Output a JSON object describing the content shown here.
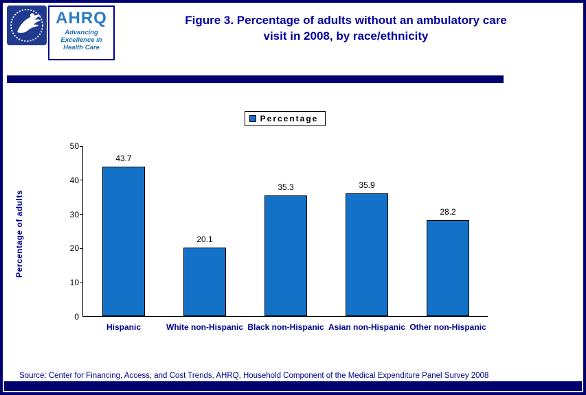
{
  "header": {
    "title": "Figure 3. Percentage of adults without an ambulatory care visit in 2008, by race/ethnicity",
    "ahrq_acronym": "AHRQ",
    "ahrq_tagline_lines": [
      "Advancing",
      "Excellence in",
      "Health Care"
    ]
  },
  "legend": {
    "label": "Percentage"
  },
  "chart_data": {
    "type": "bar",
    "categories": [
      "Hispanic",
      "White non-Hispanic",
      "Black non-Hispanic",
      "Asian non-Hispanic",
      "Other non-Hispanic"
    ],
    "values": [
      43.7,
      20.1,
      35.3,
      35.9,
      28.2
    ],
    "title": "Figure 3. Percentage of adults without an ambulatory care visit in 2008, by race/ethnicity",
    "xlabel": "",
    "ylabel": "Percentage of adults",
    "ylim": [
      0,
      50
    ],
    "yticks": [
      0,
      10,
      20,
      30,
      40,
      50
    ],
    "bar_color": "#1371C8",
    "legend_entries": [
      "Percentage"
    ],
    "legend_position": "top",
    "grid": false
  },
  "footer": {
    "source": "Source: Center for Financing, Access, and Cost Trends, AHRQ, Household Component of the Medical Expenditure Panel Survey 2008"
  },
  "colors": {
    "navy_accent": "#00006e",
    "text_navy": "#00008B",
    "title_blue": "#00009B",
    "bar_blue": "#1371C8",
    "ahrq_blue": "#2B7BC0"
  }
}
